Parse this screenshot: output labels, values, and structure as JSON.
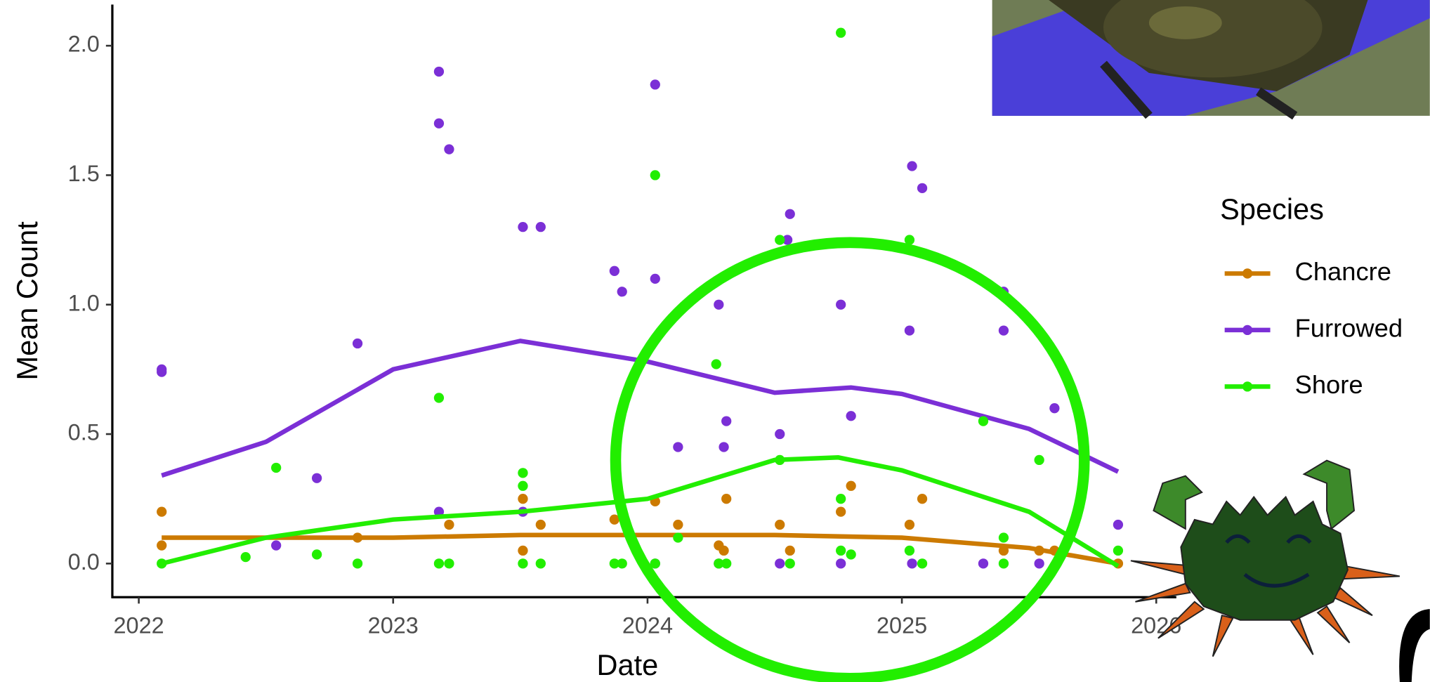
{
  "chart_data": {
    "type": "scatter",
    "x_label": "Date",
    "y_label": "Mean Count",
    "legend_title": "Species",
    "legend": "right",
    "xlim": [
      2021.896,
      2026.079
    ],
    "xticks": [
      2022,
      2023,
      2024,
      2025,
      2026
    ],
    "ylim": [
      -0.13,
      2.159
    ],
    "yticks": [
      {
        "value": 0,
        "label": "0.0"
      },
      0.5,
      {
        "value": 1,
        "label": "1.0"
      },
      1.5,
      {
        "value": 2,
        "label": "2.0"
      }
    ],
    "series": [
      {
        "name": "Chancre",
        "color": "#cc7a00",
        "x": [
          2022.09,
          2022.09,
          2022.86,
          2023.22,
          2023.51,
          2023.51,
          2023.58,
          2023.87,
          2024.03,
          2024.12,
          2024.28,
          2024.3,
          2024.31,
          2024.52,
          2024.56,
          2024.76,
          2024.8,
          2025.03,
          2025.08,
          2025.4,
          2025.54,
          2025.6,
          2025.85
        ],
        "values": [
          0.2,
          0.07,
          0.1,
          0.15,
          0.25,
          0.05,
          0.15,
          0.17,
          0.24,
          0.15,
          0.07,
          0.05,
          0.25,
          0.15,
          0.05,
          0.2,
          0.3,
          0.15,
          0.25,
          0.05,
          0.05,
          0.05,
          0.0
        ],
        "trend_x": [
          2022.09,
          2022.5,
          2023,
          2023.5,
          2024,
          2024.5,
          2025,
          2025.5,
          2025.85
        ],
        "trend": [
          0.1,
          0.1,
          0.1,
          0.11,
          0.11,
          0.11,
          0.1,
          0.06,
          0.0
        ]
      },
      {
        "name": "Furrowed",
        "color": "#7b2fd6",
        "x": [
          2022.09,
          2022.09,
          2022.54,
          2022.7,
          2022.86,
          2023.18,
          2023.18,
          2023.22,
          2023.18,
          2023.51,
          2023.58,
          2023.51,
          2023.87,
          2023.9,
          2024.03,
          2024.03,
          2024.03,
          2024.12,
          2024.28,
          2024.31,
          2024.3,
          2024.28,
          2024.52,
          2024.56,
          2024.55,
          2024.52,
          2024.76,
          2024.8,
          2024.76,
          2025.04,
          2025.08,
          2025.03,
          2025.04,
          2025.4,
          2025.4,
          2025.32,
          2025.6,
          2025.54,
          2025.85
        ],
        "values": [
          0.75,
          0.74,
          0.07,
          0.33,
          0.85,
          1.9,
          1.7,
          1.6,
          0.2,
          1.3,
          1.3,
          0.2,
          1.13,
          1.05,
          1.85,
          1.1,
          0.0,
          0.45,
          1.0,
          0.55,
          0.45,
          0.0,
          0.5,
          1.35,
          1.25,
          0.0,
          1.0,
          0.57,
          0.0,
          1.535,
          1.45,
          0.9,
          0.0,
          1.05,
          0.9,
          0.0,
          0.6,
          0.0,
          0.15
        ],
        "trend_x": [
          2022.09,
          2022.5,
          2023,
          2023.5,
          2024,
          2024.5,
          2024.8,
          2025,
          2025.5,
          2025.85
        ],
        "trend": [
          0.34,
          0.47,
          0.75,
          0.86,
          0.78,
          0.66,
          0.68,
          0.655,
          0.52,
          0.355
        ]
      },
      {
        "name": "Shore",
        "color": "#22ee00",
        "x": [
          2022.09,
          2022.42,
          2022.54,
          2022.7,
          2022.86,
          2023.18,
          2023.18,
          2023.22,
          2023.51,
          2023.51,
          2023.51,
          2023.58,
          2023.87,
          2023.9,
          2024.03,
          2024.03,
          2024.12,
          2024.27,
          2024.28,
          2024.31,
          2024.52,
          2024.52,
          2024.56,
          2024.76,
          2024.76,
          2024.76,
          2024.8,
          2025.03,
          2025.03,
          2025.08,
          2025.32,
          2025.4,
          2025.4,
          2025.54,
          2025.85
        ],
        "values": [
          0.0,
          0.025,
          0.37,
          0.035,
          0.0,
          0.64,
          0.0,
          0.0,
          0.35,
          0.3,
          0.0,
          0.0,
          0.0,
          0.0,
          1.5,
          0.0,
          0.1,
          0.77,
          0.0,
          0.0,
          1.25,
          0.4,
          0.0,
          2.05,
          0.25,
          0.05,
          0.035,
          1.25,
          0.05,
          0.0,
          0.55,
          0.1,
          0.0,
          0.4,
          0.05
        ],
        "trend_x": [
          2022.09,
          2022.5,
          2023,
          2023.5,
          2024,
          2024.5,
          2024.75,
          2025,
          2025.5,
          2025.85
        ],
        "trend": [
          0.0,
          0.1,
          0.17,
          0.2,
          0.25,
          0.4,
          0.41,
          0.36,
          0.2,
          -0.01
        ]
      }
    ]
  }
}
